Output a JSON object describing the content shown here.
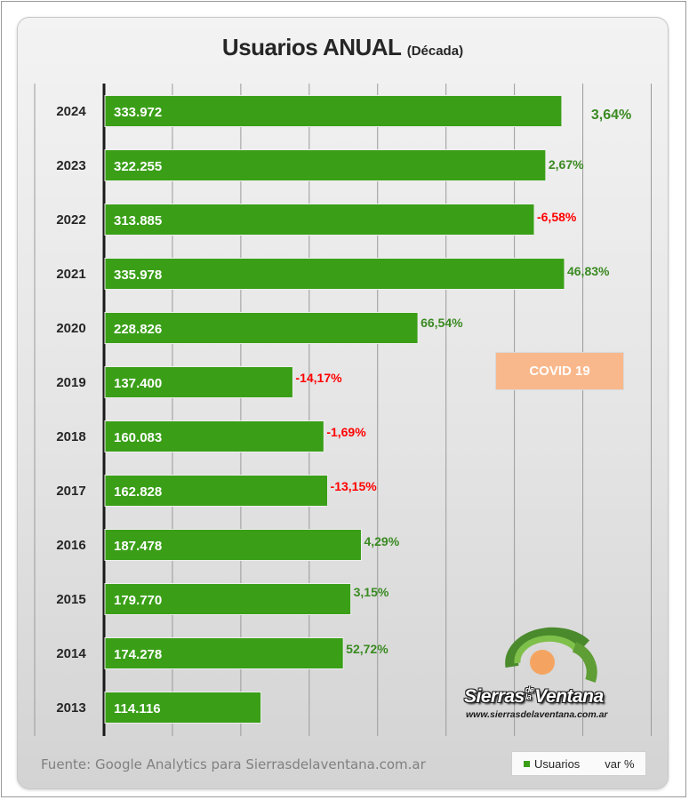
{
  "chart_data": {
    "type": "bar",
    "orientation": "horizontal",
    "title": "Usuarios ANUAL",
    "subtitle": "(Década)",
    "categories": [
      "2024",
      "2023",
      "2022",
      "2021",
      "2020",
      "2019",
      "2018",
      "2017",
      "2016",
      "2015",
      "2014",
      "2013"
    ],
    "series": [
      {
        "name": "Usuarios",
        "values": [
          333972,
          322255,
          313885,
          335978,
          228826,
          137400,
          160083,
          162828,
          187478,
          179770,
          174278,
          114116
        ],
        "labels": [
          "333.972",
          "322.255",
          "313.885",
          "335.978",
          "228.826",
          "137.400",
          "160.083",
          "162.828",
          "187.478",
          "179.770",
          "174.278",
          "114.116"
        ]
      },
      {
        "name": "var %",
        "values": [
          3.64,
          2.67,
          -6.58,
          46.83,
          66.54,
          -14.17,
          -1.69,
          -13.15,
          4.29,
          3.15,
          52.72,
          null
        ],
        "labels": [
          "3,64%",
          "2,67%",
          "-6,58%",
          "46,83%",
          "66,54%",
          "-14,17%",
          "-1,69%",
          "-13,15%",
          "4,29%",
          "3,15%",
          "52,72%",
          ""
        ]
      }
    ],
    "xlim": [
      0,
      400000
    ],
    "grid": true,
    "legend_position": "bottom-right",
    "annotation": "COVID 19"
  },
  "source": "Fuente: Google Analytics para Sierrasdelaventana.com.ar",
  "legend": {
    "usuarios_label": "Usuarios",
    "var_label": "var %"
  },
  "logo": {
    "brand": "Sierras de la Ventana",
    "brand_main": "Sierras",
    "brand_de": "de",
    "brand_la": "la",
    "brand_end": "Ventana",
    "url": "www.sierrasdelaventana.com.ar"
  },
  "colors": {
    "bar": "#3a9f17",
    "bar_edge": "#eeeeee",
    "positive": "#3a8a22",
    "negative": "#ff0000",
    "covid": "#f9b88c"
  }
}
